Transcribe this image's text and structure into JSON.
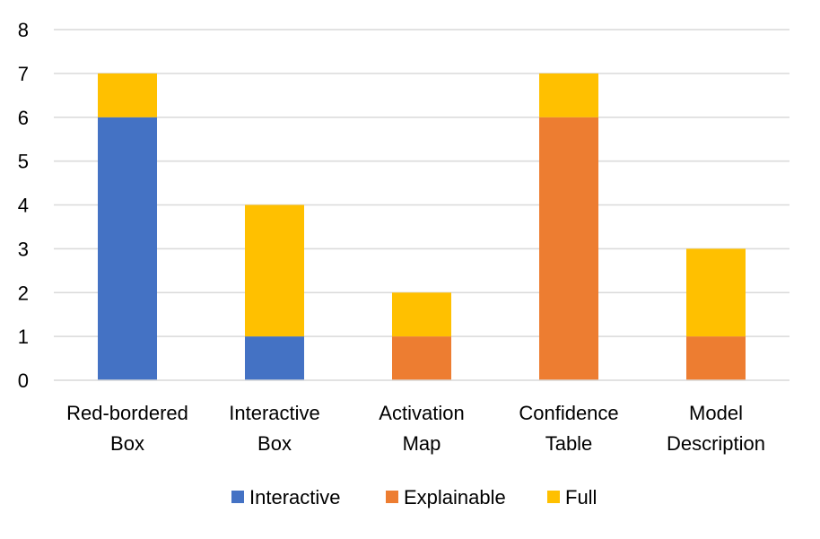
{
  "chart_data": {
    "type": "bar",
    "stacked": true,
    "categories": [
      [
        "Red-bordered",
        "Box"
      ],
      [
        "Interactive",
        "Box"
      ],
      [
        "Activation",
        "Map"
      ],
      [
        "Confidence",
        "Table"
      ],
      [
        "Model",
        "Description"
      ]
    ],
    "series": [
      {
        "name": "Interactive",
        "color": "#4472C4",
        "values": [
          6,
          1,
          0,
          0,
          0
        ]
      },
      {
        "name": "Explainable",
        "color": "#ED7D31",
        "values": [
          0,
          0,
          1,
          6,
          1
        ]
      },
      {
        "name": "Full",
        "color": "#FFC000",
        "values": [
          1,
          3,
          1,
          1,
          2
        ]
      }
    ],
    "ylim": [
      0,
      8
    ],
    "yticks": [
      "0",
      "1",
      "2",
      "3",
      "4",
      "5",
      "6",
      "7",
      "8"
    ],
    "grid": true,
    "legend_position": "bottom",
    "title": "",
    "xlabel": "",
    "ylabel": ""
  }
}
